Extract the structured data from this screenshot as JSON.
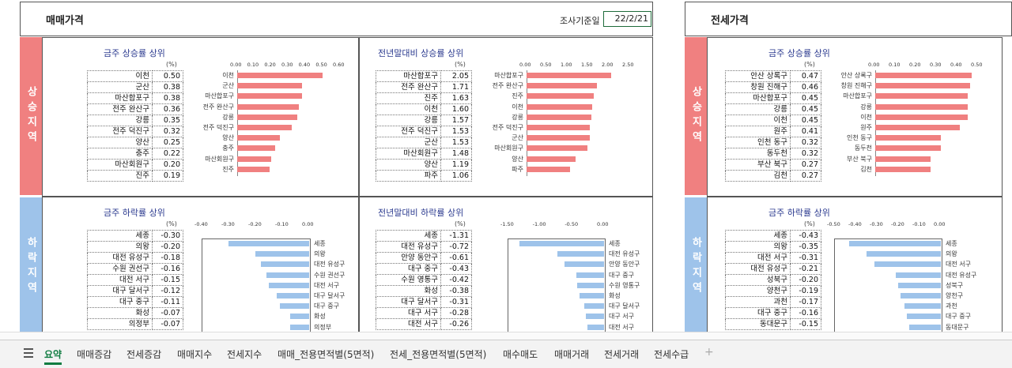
{
  "left": {
    "title": "매매가격",
    "survey_label": "조사기준일",
    "survey_date": "22/2/21",
    "side_up": "상승지역",
    "side_down": "하락지역",
    "panels": [
      {
        "title": "금주 상승률 상위",
        "unit": "(%)",
        "color": "r",
        "ticks": [
          "0.00",
          "0.10",
          "0.20",
          "0.30",
          "0.40",
          "0.50",
          "0.60"
        ],
        "max": 0.6,
        "min": 0,
        "rows": [
          [
            "이천",
            "0.50"
          ],
          [
            "군산",
            "0.38"
          ],
          [
            "마산합포구",
            "0.38"
          ],
          [
            "전주 완산구",
            "0.36"
          ],
          [
            "강릉",
            "0.35"
          ],
          [
            "전주 덕진구",
            "0.32"
          ],
          [
            "양산",
            "0.25"
          ],
          [
            "충주",
            "0.22"
          ],
          [
            "마산회원구",
            "0.20"
          ],
          [
            "진주",
            "0.19"
          ]
        ]
      },
      {
        "title": "전년말대비 상승률 상위",
        "unit": "(%)",
        "color": "r",
        "ticks": [
          "0.00",
          "0.50",
          "1.00",
          "1.50",
          "2.00",
          "2.50"
        ],
        "max": 2.5,
        "min": 0,
        "rows": [
          [
            "마산합포구",
            "2.05"
          ],
          [
            "전주 완산구",
            "1.71"
          ],
          [
            "진주",
            "1.63"
          ],
          [
            "이천",
            "1.60"
          ],
          [
            "강릉",
            "1.57"
          ],
          [
            "전주 덕진구",
            "1.53"
          ],
          [
            "군산",
            "1.53"
          ],
          [
            "마산회원구",
            "1.48"
          ],
          [
            "양산",
            "1.19"
          ],
          [
            "파주",
            "1.06"
          ]
        ]
      },
      {
        "title": "금주 하락률 상위",
        "unit": "(%)",
        "color": "b",
        "ticks": [
          "-0.40",
          "-0.30",
          "-0.20",
          "-0.10",
          "0.00"
        ],
        "max": 0,
        "min": -0.4,
        "rows": [
          [
            "세종",
            "-0.30"
          ],
          [
            "의왕",
            "-0.20"
          ],
          [
            "대전 유성구",
            "-0.18"
          ],
          [
            "수원 권선구",
            "-0.16"
          ],
          [
            "대전 서구",
            "-0.15"
          ],
          [
            "대구 달서구",
            "-0.12"
          ],
          [
            "대구 중구",
            "-0.11"
          ],
          [
            "화성",
            "-0.07"
          ],
          [
            "의정부",
            "-0.07"
          ]
        ]
      },
      {
        "title": "전년말대비 하락률 상위",
        "unit": "(%)",
        "color": "b",
        "ticks": [
          "-1.50",
          "-1.00",
          "-0.50",
          "0.00"
        ],
        "max": 0,
        "min": -1.5,
        "rows": [
          [
            "세종",
            "-1.31"
          ],
          [
            "대전 유성구",
            "-0.72"
          ],
          [
            "안양 동안구",
            "-0.61"
          ],
          [
            "대구 중구",
            "-0.43"
          ],
          [
            "수원 영통구",
            "-0.42"
          ],
          [
            "화성",
            "-0.38"
          ],
          [
            "대구 달서구",
            "-0.31"
          ],
          [
            "대구 서구",
            "-0.28"
          ],
          [
            "대전 서구",
            "-0.26"
          ]
        ]
      }
    ]
  },
  "right": {
    "title": "전세가격",
    "side_up": "상승지역",
    "side_down": "하락지역",
    "panels": [
      {
        "title": "금주 상승률 상위",
        "unit": "(%)",
        "color": "r",
        "ticks": [
          "0.00",
          "0.10",
          "0.20",
          "0.30",
          "0.40",
          "0.50"
        ],
        "max": 0.5,
        "min": 0,
        "rows": [
          [
            "안산 상록구",
            "0.47"
          ],
          [
            "창원 진해구",
            "0.46"
          ],
          [
            "마산합포구",
            "0.45"
          ],
          [
            "강릉",
            "0.45"
          ],
          [
            "이천",
            "0.45"
          ],
          [
            "원주",
            "0.41"
          ],
          [
            "인천 동구",
            "0.32"
          ],
          [
            "동두천",
            "0.32"
          ],
          [
            "부산 북구",
            "0.27"
          ],
          [
            "김천",
            "0.27"
          ]
        ]
      },
      {
        "title": "금주 하락률 상위",
        "unit": "(%)",
        "color": "b",
        "ticks": [
          "-0.50",
          "-0.40",
          "-0.30",
          "-0.20",
          "-0.10",
          "0.00"
        ],
        "max": 0,
        "min": -0.5,
        "rows": [
          [
            "세종",
            "-0.43"
          ],
          [
            "의왕",
            "-0.35"
          ],
          [
            "대전 서구",
            "-0.31"
          ],
          [
            "대전 유성구",
            "-0.21"
          ],
          [
            "성북구",
            "-0.20"
          ],
          [
            "양천구",
            "-0.19"
          ],
          [
            "과천",
            "-0.17"
          ],
          [
            "대구 중구",
            "-0.16"
          ],
          [
            "동대문구",
            "-0.15"
          ]
        ]
      }
    ]
  },
  "tabs": [
    "요약",
    "매매증감",
    "전세증감",
    "매매지수",
    "전세지수",
    "매매_전용면적별(5면적)",
    "전세_전용면적별(5면적)",
    "매수매도",
    "매매거래",
    "전세거래",
    "전세수급"
  ],
  "active_tab": "요약",
  "menu_icon": "hamburger-menu-icon",
  "add_tab_icon": "plus-icon"
}
